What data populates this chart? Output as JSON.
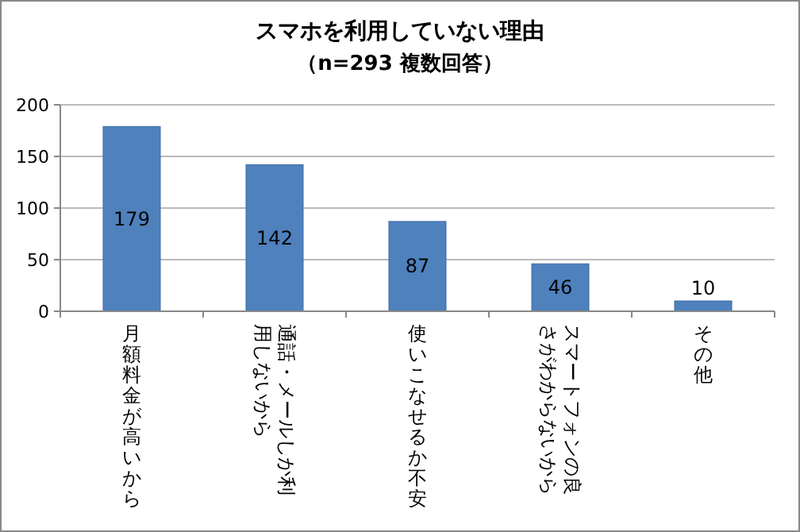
{
  "chart_data": {
    "type": "bar",
    "title": "スマホを利用していない理由",
    "subtitle": "（n=293 複数回答）",
    "categories": [
      "月額料金が高いから",
      "通話・メールしか利用しないから",
      "使いこなせるか不安",
      "スマートフォンの良さがわからないから",
      "その他"
    ],
    "values": [
      179,
      142,
      87,
      46,
      10
    ],
    "color": "#4f81bd",
    "ylim": [
      0,
      200
    ],
    "yticks": [
      0,
      50,
      100,
      150,
      200
    ],
    "grid": "y",
    "data_labels": true
  }
}
